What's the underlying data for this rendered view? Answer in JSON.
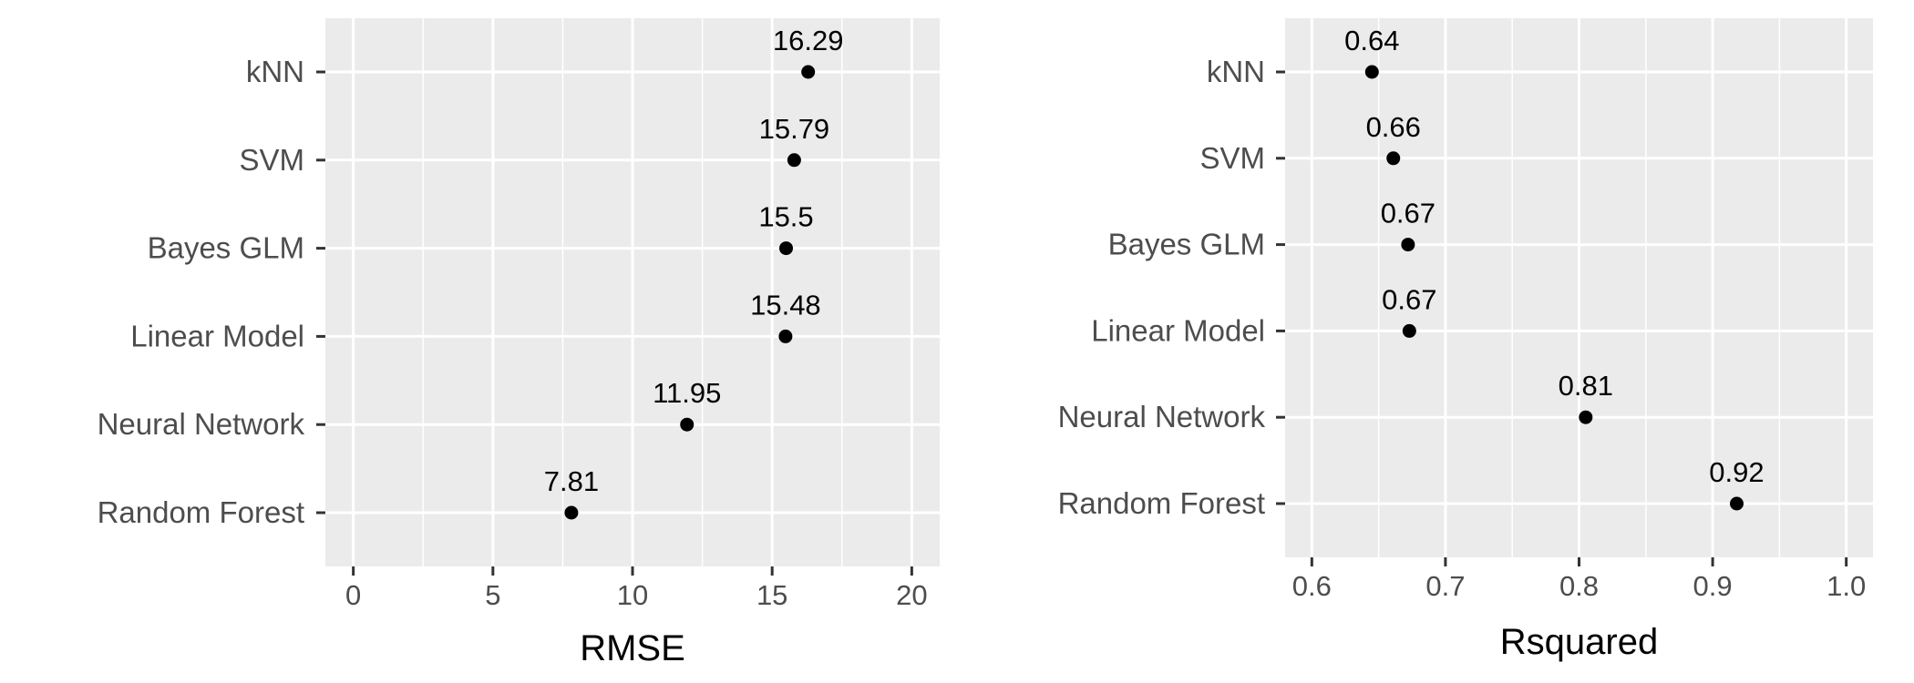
{
  "chart_data": [
    {
      "type": "scatter",
      "categories": [
        "kNN",
        "SVM",
        "Bayes GLM",
        "Linear Model",
        "Neural Network",
        "Random Forest"
      ],
      "values": [
        16.29,
        15.79,
        15.5,
        15.48,
        11.95,
        7.81
      ],
      "value_labels": [
        "16.29",
        "15.79",
        "15.5",
        "15.48",
        "11.95",
        "7.81"
      ],
      "xlabel": "RMSE",
      "ylabel": "",
      "xlim": [
        -1,
        21
      ],
      "xticks": [
        0,
        5,
        10,
        15,
        20
      ],
      "xtick_labels": [
        "0",
        "5",
        "10",
        "15",
        "20"
      ],
      "grid": true,
      "legend": "none"
    },
    {
      "type": "scatter",
      "categories": [
        "kNN",
        "SVM",
        "Bayes GLM",
        "Linear Model",
        "Neural Network",
        "Random Forest"
      ],
      "values": [
        0.645,
        0.661,
        0.672,
        0.673,
        0.805,
        0.918
      ],
      "value_labels": [
        "0.64",
        "0.66",
        "0.67",
        "0.67",
        "0.81",
        "0.92"
      ],
      "xlabel": "Rsquared",
      "ylabel": "",
      "xlim": [
        0.58,
        1.02
      ],
      "xticks": [
        0.6,
        0.7,
        0.8,
        0.9,
        1.0
      ],
      "xtick_labels": [
        "0.6",
        "0.7",
        "0.8",
        "0.9",
        "1.0"
      ],
      "grid": true,
      "legend": "none"
    }
  ],
  "colors": {
    "panel_background": "#ebebeb",
    "grid": "#ffffff",
    "point": "#000000",
    "axis_text": "#4d4d4d",
    "tick": "#333333"
  }
}
